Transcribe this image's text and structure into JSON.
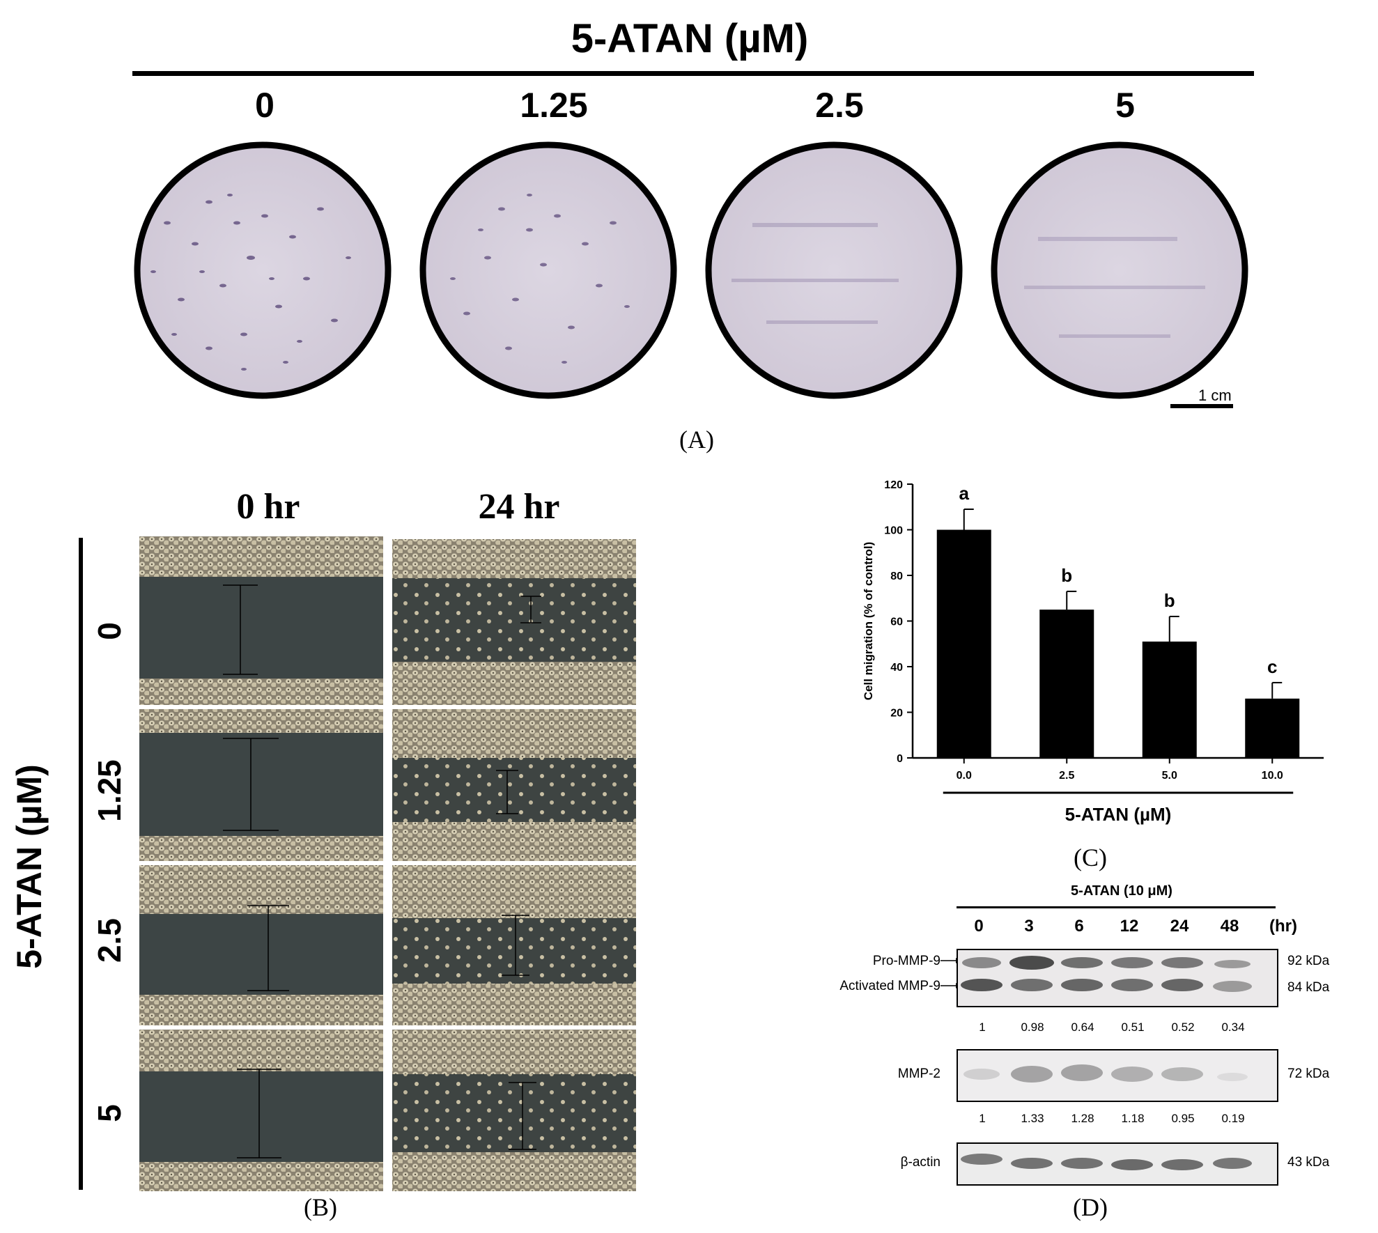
{
  "panel_a": {
    "heading": "5-ATAN (µM)",
    "concentrations": [
      "0",
      "1.25",
      "2.5",
      "5"
    ],
    "scale_bar_label": "1 cm",
    "panel_label": "(A)"
  },
  "panel_b": {
    "time_headers": [
      "0 hr",
      "24 hr"
    ],
    "axis_label": "5-ATAN (µM)",
    "row_labels": [
      "0",
      "1.25",
      "2.5",
      "5"
    ],
    "panel_label": "(B)"
  },
  "panel_c": {
    "panel_label": "(C)"
  },
  "chart_data": {
    "type": "bar",
    "categories": [
      "0.0",
      "2.5",
      "5.0",
      "10.0"
    ],
    "values": [
      100,
      65,
      51,
      26
    ],
    "errors": [
      9,
      8,
      11,
      7
    ],
    "significance_letters": [
      "a",
      "b",
      "b",
      "c"
    ],
    "xlabel": "5-ATAN (µM)",
    "ylabel": "Cell migration (% of control)",
    "ylim": [
      0,
      120
    ],
    "yticks": [
      "0",
      "20",
      "40",
      "60",
      "80",
      "100",
      "120"
    ],
    "bar_color": "#000000",
    "grid": false
  },
  "panel_d": {
    "treatment_label": "5-ATAN (10 μM)",
    "time_points": [
      "0",
      "3",
      "6",
      "12",
      "24",
      "48"
    ],
    "time_unit": "(hr)",
    "blots": [
      {
        "labels": [
          "Pro-MMP-9",
          "Activated MMP-9"
        ],
        "sizes": [
          "92 kDa",
          "84 kDa"
        ],
        "values": [
          "1",
          "0.98",
          "0.64",
          "0.51",
          "0.52",
          "0.34"
        ]
      },
      {
        "labels": [
          "MMP-2"
        ],
        "sizes": [
          "72 kDa"
        ],
        "values": [
          "1",
          "1.33",
          "1.28",
          "1.18",
          "0.95",
          "0.19"
        ]
      },
      {
        "labels": [
          "β-actin"
        ],
        "sizes": [
          "43 kDa"
        ],
        "values": []
      }
    ],
    "panel_label": "(D)"
  }
}
